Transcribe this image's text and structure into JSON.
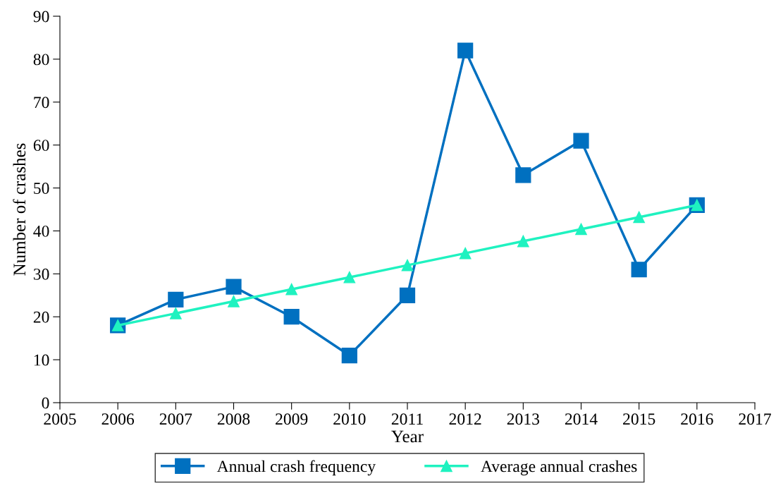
{
  "chart_data": {
    "type": "line",
    "xlabel": "Year",
    "ylabel": "Number of crashes",
    "x": [
      2006,
      2007,
      2008,
      2009,
      2010,
      2011,
      2012,
      2013,
      2014,
      2015,
      2016
    ],
    "series": [
      {
        "name": "Annual crash frequency",
        "color": "#0070c0",
        "marker": "square",
        "values": [
          18,
          24,
          27,
          20,
          11,
          25,
          82,
          53,
          61,
          31,
          46
        ]
      },
      {
        "name": "Average annual crashes",
        "color": "#1ff2c0",
        "marker": "triangle",
        "values": [
          18,
          20.8,
          23.6,
          26.4,
          29.2,
          32,
          34.8,
          37.6,
          40.4,
          43.2,
          46
        ]
      }
    ],
    "xlim": [
      2005,
      2017
    ],
    "xticks": [
      2005,
      2006,
      2007,
      2008,
      2009,
      2010,
      2011,
      2012,
      2013,
      2014,
      2015,
      2016,
      2017
    ],
    "ylim": [
      0,
      90
    ],
    "yticks": [
      0,
      10,
      20,
      30,
      40,
      50,
      60,
      70,
      80,
      90
    ],
    "grid": false,
    "legend": "bottom",
    "line_style": "solid"
  }
}
